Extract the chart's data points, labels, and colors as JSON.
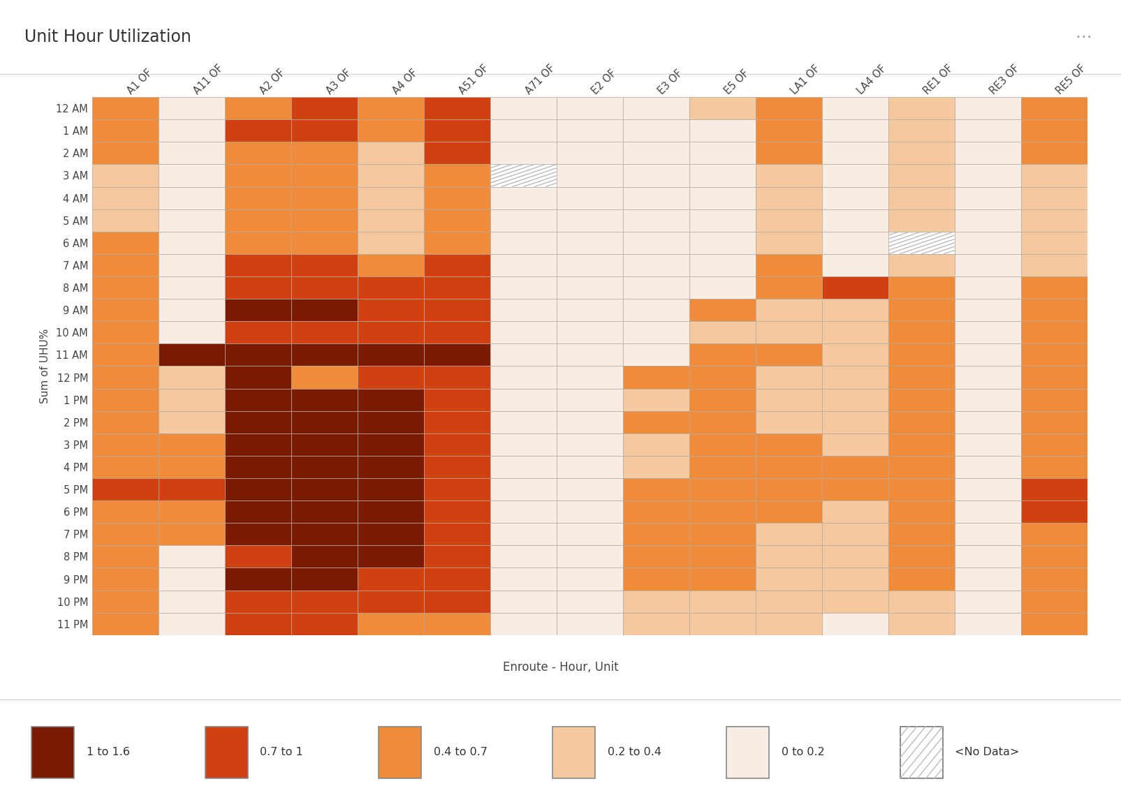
{
  "title": "Unit Hour Utilization",
  "xlabel": "Enroute - Hour, Unit",
  "ylabel": "Sum of UHU%",
  "columns": [
    "A1 OF",
    "A11 OF",
    "A2 OF",
    "A3 OF",
    "A4 OF",
    "A51 OF",
    "A71 OF",
    "E2 OF",
    "E3 OF",
    "E5 OF",
    "LA1 OF",
    "LA4 OF",
    "RE1 OF",
    "RE3 OF",
    "RE5 OF"
  ],
  "rows": [
    "12 AM",
    "1 AM",
    "2 AM",
    "3 AM",
    "4 AM",
    "5 AM",
    "6 AM",
    "7 AM",
    "8 AM",
    "9 AM",
    "10 AM",
    "11 AM",
    "12 PM",
    "1 PM",
    "2 PM",
    "3 PM",
    "4 PM",
    "5 PM",
    "6 PM",
    "7 PM",
    "8 PM",
    "9 PM",
    "10 PM",
    "11 PM"
  ],
  "data": [
    [
      0.55,
      0.1,
      0.5,
      0.8,
      0.55,
      0.85,
      0.1,
      0.1,
      0.1,
      0.25,
      0.5,
      0.1,
      0.3,
      0.1,
      0.55
    ],
    [
      0.5,
      0.1,
      0.85,
      0.8,
      0.5,
      0.85,
      0.1,
      0.1,
      0.1,
      0.1,
      0.5,
      0.1,
      0.3,
      0.1,
      0.5
    ],
    [
      0.5,
      0.1,
      0.5,
      0.5,
      0.3,
      0.75,
      0.1,
      0.1,
      0.1,
      0.1,
      0.45,
      0.1,
      0.3,
      0.1,
      0.45
    ],
    [
      0.4,
      0.1,
      0.5,
      0.5,
      0.3,
      0.55,
      -1.0,
      0.1,
      0.1,
      0.1,
      0.4,
      0.1,
      0.3,
      0.1,
      0.4
    ],
    [
      0.4,
      0.1,
      0.5,
      0.5,
      0.35,
      0.55,
      0.1,
      0.1,
      0.1,
      0.1,
      0.35,
      0.1,
      0.3,
      0.1,
      0.35
    ],
    [
      0.35,
      0.1,
      0.5,
      0.5,
      0.35,
      0.5,
      0.1,
      0.1,
      0.1,
      0.1,
      0.35,
      0.1,
      0.3,
      0.1,
      0.3
    ],
    [
      0.45,
      0.1,
      0.5,
      0.5,
      0.35,
      0.55,
      0.1,
      0.1,
      0.1,
      0.1,
      0.35,
      0.1,
      -1.0,
      0.1,
      0.3
    ],
    [
      0.55,
      0.1,
      0.75,
      0.8,
      0.55,
      0.75,
      0.1,
      0.1,
      0.1,
      0.1,
      0.45,
      0.1,
      0.3,
      0.1,
      0.3
    ],
    [
      0.55,
      0.1,
      0.85,
      0.8,
      0.75,
      0.85,
      0.1,
      0.1,
      0.1,
      0.1,
      0.45,
      0.75,
      0.45,
      0.1,
      0.45
    ],
    [
      0.55,
      0.1,
      1.1,
      1.3,
      0.85,
      0.85,
      0.1,
      0.1,
      0.1,
      0.55,
      0.35,
      0.3,
      0.55,
      0.1,
      0.55
    ],
    [
      0.55,
      0.1,
      0.85,
      0.85,
      0.8,
      0.85,
      0.1,
      0.1,
      0.1,
      0.35,
      0.35,
      0.3,
      0.65,
      0.1,
      0.65
    ],
    [
      0.55,
      1.3,
      1.3,
      1.3,
      1.1,
      1.1,
      0.1,
      0.1,
      0.1,
      0.55,
      0.55,
      0.35,
      0.55,
      0.1,
      0.55
    ],
    [
      0.55,
      0.3,
      1.3,
      0.65,
      0.85,
      0.85,
      0.1,
      0.1,
      0.45,
      0.45,
      0.35,
      0.3,
      0.45,
      0.1,
      0.45
    ],
    [
      0.55,
      0.25,
      1.3,
      1.1,
      1.1,
      0.85,
      0.1,
      0.1,
      0.35,
      0.45,
      0.35,
      0.3,
      0.45,
      0.1,
      0.55
    ],
    [
      0.55,
      0.35,
      1.3,
      1.1,
      1.1,
      0.85,
      0.1,
      0.1,
      0.45,
      0.55,
      0.35,
      0.3,
      0.55,
      0.1,
      0.65
    ],
    [
      0.65,
      0.65,
      1.3,
      1.1,
      1.1,
      0.85,
      0.1,
      0.1,
      0.35,
      0.55,
      0.45,
      0.35,
      0.55,
      0.1,
      0.65
    ],
    [
      0.65,
      0.55,
      1.3,
      1.1,
      1.1,
      0.85,
      0.1,
      0.1,
      0.35,
      0.55,
      0.55,
      0.55,
      0.55,
      0.1,
      0.65
    ],
    [
      0.75,
      0.75,
      1.3,
      1.3,
      1.1,
      0.85,
      0.1,
      0.1,
      0.65,
      0.65,
      0.45,
      0.45,
      0.65,
      0.1,
      0.85
    ],
    [
      0.55,
      0.65,
      1.3,
      1.3,
      1.1,
      0.85,
      0.1,
      0.1,
      0.55,
      0.65,
      0.45,
      0.35,
      0.55,
      0.1,
      0.75
    ],
    [
      0.55,
      0.65,
      1.3,
      1.1,
      1.1,
      0.85,
      0.1,
      0.1,
      0.55,
      0.55,
      0.35,
      0.35,
      0.45,
      0.1,
      0.65
    ],
    [
      0.55,
      0.1,
      0.85,
      1.3,
      1.1,
      0.85,
      0.1,
      0.1,
      0.55,
      0.55,
      0.35,
      0.25,
      0.45,
      0.1,
      0.55
    ],
    [
      0.55,
      0.1,
      1.1,
      1.1,
      0.85,
      0.85,
      0.1,
      0.1,
      0.45,
      0.45,
      0.35,
      0.25,
      0.45,
      0.1,
      0.55
    ],
    [
      0.55,
      0.1,
      0.85,
      0.85,
      0.75,
      0.75,
      0.1,
      0.1,
      0.35,
      0.35,
      0.35,
      0.25,
      0.35,
      0.1,
      0.65
    ],
    [
      0.45,
      0.1,
      0.75,
      0.75,
      0.65,
      0.65,
      0.1,
      0.1,
      0.25,
      0.25,
      0.25,
      0.1,
      0.25,
      0.1,
      0.45
    ]
  ],
  "color_bins": [
    0.0,
    0.2,
    0.4,
    0.7,
    1.0,
    1.7
  ],
  "bin_colors": [
    "#f8ede5",
    "#f5c9a0",
    "#ef8c3a",
    "#d04010",
    "#7a1a02"
  ],
  "no_data_value": -1,
  "background_color": "#f5ede6",
  "grid_color": "#b8a898",
  "legend_items": [
    {
      "label": "1 to 1.6",
      "color": "#7a1a02"
    },
    {
      "label": "0.7 to 1",
      "color": "#d04010"
    },
    {
      "label": "0.4 to 0.7",
      "color": "#ef8c3a"
    },
    {
      "label": "0.2 to 0.4",
      "color": "#f5c9a0"
    },
    {
      "label": "0 to 0.2",
      "color": "#f8ede5"
    },
    {
      "label": "<No Data>",
      "color": "nodata"
    }
  ],
  "title_fontsize": 17,
  "tick_fontsize": 10.5,
  "xlabel_fontsize": 12,
  "ylabel_fontsize": 11
}
